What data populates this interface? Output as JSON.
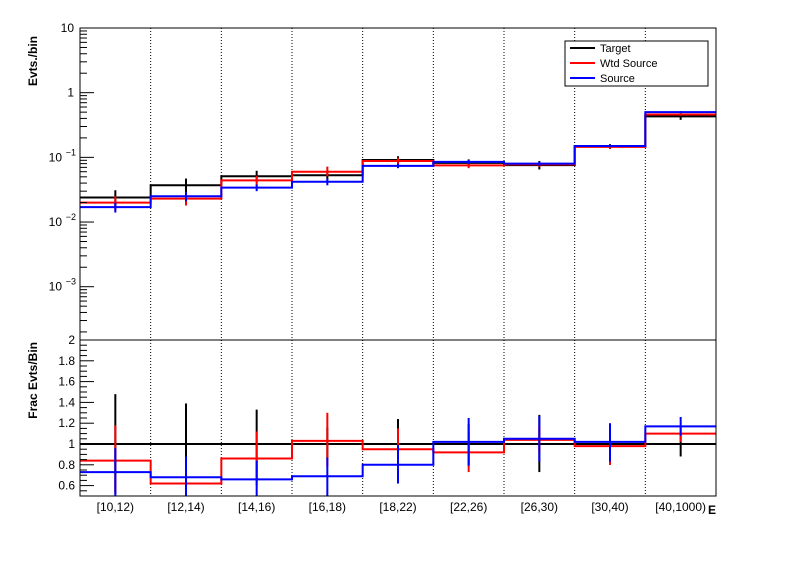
{
  "chart_data": [
    {
      "type": "line",
      "style": "step-histogram",
      "scale": "log",
      "ylabel": "Evts./bin",
      "ylim": [
        0.00015,
        10
      ],
      "yticks": [
        {
          "value": 10,
          "label": "10"
        },
        {
          "value": 1,
          "label": "1"
        },
        {
          "value": 0.1,
          "label": "10",
          "exp": "−1"
        },
        {
          "value": 0.01,
          "label": "10",
          "exp": "−2"
        },
        {
          "value": 0.001,
          "label": "10",
          "exp": "−3"
        }
      ],
      "categories": [
        "[10,12)",
        "[12,14)",
        "[14,16)",
        "[16,18)",
        "[18,22)",
        "[22,26)",
        "[26,30)",
        "[30,40)",
        "[40,1000)"
      ],
      "legend_position": "top-right",
      "grid": "vertical-dotted",
      "series": [
        {
          "name": "Target",
          "color": "#000000",
          "values": [
            0.024,
            0.037,
            0.051,
            0.053,
            0.091,
            0.082,
            0.076,
            0.147,
            0.43
          ],
          "err_low": [
            0.017,
            0.027,
            0.041,
            0.044,
            0.078,
            0.072,
            0.065,
            0.135,
            0.38
          ],
          "err_high": [
            0.031,
            0.047,
            0.062,
            0.062,
            0.104,
            0.093,
            0.088,
            0.16,
            0.47
          ]
        },
        {
          "name": "Wtd Source",
          "color": "#ff0000",
          "values": [
            0.02,
            0.023,
            0.044,
            0.06,
            0.088,
            0.075,
            0.078,
            0.145,
            0.46
          ],
          "err_low": [
            0.015,
            0.018,
            0.036,
            0.051,
            0.078,
            0.068,
            0.071,
            0.136,
            0.44
          ],
          "err_high": [
            0.025,
            0.029,
            0.052,
            0.072,
            0.099,
            0.083,
            0.085,
            0.155,
            0.48
          ]
        },
        {
          "name": "Source",
          "color": "#0000ff",
          "values": [
            0.017,
            0.025,
            0.034,
            0.042,
            0.074,
            0.085,
            0.08,
            0.15,
            0.5
          ],
          "err_low": [
            0.014,
            0.021,
            0.03,
            0.037,
            0.068,
            0.079,
            0.074,
            0.143,
            0.48
          ],
          "err_high": [
            0.02,
            0.029,
            0.038,
            0.047,
            0.08,
            0.091,
            0.086,
            0.157,
            0.52
          ]
        }
      ]
    },
    {
      "type": "line",
      "style": "step-histogram",
      "ylabel": "Frac Evts/Bin",
      "xlabel": "E",
      "ylim": [
        0.5,
        2
      ],
      "yticks": [
        {
          "value": 0.6,
          "label": "0.6"
        },
        {
          "value": 0.8,
          "label": "0.8"
        },
        {
          "value": 1,
          "label": "1"
        },
        {
          "value": 1.2,
          "label": "1.2"
        },
        {
          "value": 1.4,
          "label": "1.4"
        },
        {
          "value": 1.6,
          "label": "1.6"
        },
        {
          "value": 1.8,
          "label": "1.8"
        },
        {
          "value": 2,
          "label": "2"
        }
      ],
      "categories": [
        "[10,12)",
        "[12,14)",
        "[14,16)",
        "[16,18)",
        "[18,22)",
        "[22,26)",
        "[26,30)",
        "[30,40)",
        "[40,1000)"
      ],
      "series": [
        {
          "name": "Target",
          "color": "#000000",
          "values": [
            1,
            1,
            1,
            1,
            1,
            1,
            1,
            1,
            1
          ],
          "err_low": [
            0.52,
            0.6,
            0.66,
            0.85,
            0.77,
            0.8,
            0.73,
            0.8,
            0.88
          ],
          "err_high": [
            1.48,
            1.39,
            1.33,
            1.16,
            1.24,
            1.19,
            1.28,
            1.19,
            1.1
          ]
        },
        {
          "name": "Wtd Source",
          "color": "#ff0000",
          "values": [
            0.84,
            0.62,
            0.86,
            1.03,
            0.95,
            0.92,
            1.04,
            0.98,
            1.1
          ],
          "err_low": [
            0.54,
            0.5,
            0.6,
            0.78,
            0.77,
            0.73,
            0.92,
            0.8,
            1.02
          ],
          "err_high": [
            1.18,
            0.76,
            1.12,
            1.3,
            1.15,
            1.11,
            1.17,
            1.16,
            1.17
          ]
        },
        {
          "name": "Source",
          "color": "#0000ff",
          "values": [
            0.73,
            0.68,
            0.66,
            0.69,
            0.8,
            1.02,
            1.05,
            1.02,
            1.17
          ],
          "err_low": [
            0.5,
            0.5,
            0.5,
            0.5,
            0.62,
            0.79,
            0.83,
            0.83,
            1.08
          ],
          "err_high": [
            0.96,
            0.88,
            0.84,
            0.87,
            0.99,
            1.25,
            1.27,
            1.2,
            1.26
          ]
        }
      ]
    }
  ]
}
